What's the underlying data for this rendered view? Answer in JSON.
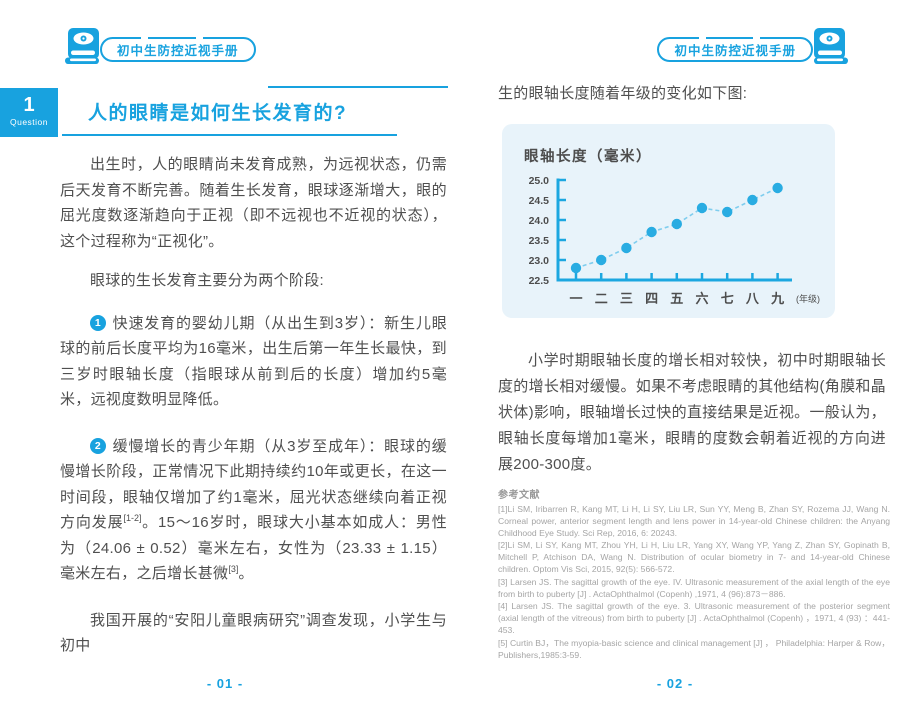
{
  "brand": {
    "primary_color": "#18a2df"
  },
  "left_page": {
    "header_title": "初中生防控近视手册",
    "question_number": "1",
    "question_label": "Question",
    "section_title": "人的眼睛是如何生长发育的?",
    "para_intro": "出生时，人的眼睛尚未发育成熟，为远视状态，仍需后天发育不断完善。随着生长发育，眼球逐渐增大，眼的屈光度数逐渐趋向于正视（即不远视也不近视的状态），这个过程称为“正视化”。",
    "para_stages_lead": "眼球的生长发育主要分为两个阶段:",
    "stages": [
      {
        "num": "1",
        "parts": [
          {
            "t": "快速发育的婴幼儿期（从出生到3岁）：新生儿眼球的前后长度平均为16毫米，出生后第一年生长最快，到三岁时眼轴长度（指眼球从前到后的长度）增加约5毫米，远视度数明显降低。",
            "sup": false
          }
        ]
      },
      {
        "num": "2",
        "parts": [
          {
            "t": "缓慢增长的青少年期（从3岁至成年）：眼球的缓慢增长阶段，正常情况下此期持续约10年或更长，在这一时间段，眼轴仅增加了约1毫米，屈光状态继续向着正视方向发展",
            "sup": false
          },
          {
            "t": "[1-2]",
            "sup": true
          },
          {
            "t": "。15～16岁时，眼球大小基本如成人：男性为（24.06 ± 0.52）毫米左右，女性为（23.33 ± 1.15）毫米左右，之后增长甚微",
            "sup": false
          },
          {
            "t": "[3]",
            "sup": true
          },
          {
            "t": "。",
            "sup": false
          }
        ]
      }
    ],
    "para_closing": "我国开展的“安阳儿童眼病研究”调查发现，小学生与初中",
    "page_number": "- 01 -"
  },
  "right_page": {
    "header_title": "初中生防控近视手册",
    "lead": "生的眼轴长度随着年级的变化如下图:",
    "paragraph": "小学时期眼轴长度的增长相对较快，初中时期眼轴长度的增长相对缓慢。如果不考虑眼睛的其他结构(角膜和晶状体)影响，眼轴增长过快的直接结果是近视。一般认为，眼轴长度每增加1毫米，眼睛的度数会朝着近视的方向进展200-300度。",
    "references_title": "参考文献",
    "references": [
      "[1]Li SM, Iribarren R, Kang MT, Li H, Li SY, Liu LR, Sun YY, Meng B, Zhan SY, Rozema JJ, Wang N. Corneal power, anterior segment length and lens power in 14-year-old Chinese children: the Anyang Childhood Eye Study. Sci Rep, 2016, 6: 20243.",
      "[2]Li SM, Li SY, Kang MT, Zhou YH, Li H, Liu LR, Yang XY, Wang YP, Yang Z, Zhan SY, Gopinath B, Mitchell P, Atchison DA, Wang N. Distribution of ocular biometry in 7- and 14-year-old Chinese children. Optom Vis Sci, 2015, 92(5): 566-572.",
      "[3] Larsen JS. The sagittal growth of the eye. IV. Ultrasonic measurement of the axial length of the eye from birth to puberty [J] . ActaOphthalmol (Copenh) ,1971, 4 (96):873－886.",
      "[4] Larsen JS. The sagittal growth of the eye. 3. Ultrasonic measurement of the posterior segment (axial length of the vitreous) from birth to puberty [J] . ActaOphthalmol (Copenh) ，1971, 4 (93) ：441-453.",
      "[5] Curtin BJ，The myopia-basic science and clinical management [J] ， Philadelphia: Harper & Row，Publishers,1985:3-59."
    ],
    "page_number": "- 02 -"
  },
  "chart_data": {
    "type": "line",
    "title": "眼轴长度（毫米）",
    "categories": [
      "一",
      "二",
      "三",
      "四",
      "五",
      "六",
      "七",
      "八",
      "九"
    ],
    "values": [
      22.8,
      23.0,
      23.3,
      23.7,
      23.9,
      24.3,
      24.2,
      24.5,
      24.8
    ],
    "xlabel": "(年级)",
    "ylabel": "眼轴长度（毫米）",
    "ylim": [
      22.5,
      25.0
    ],
    "yticks": [
      25.0,
      24.5,
      24.0,
      23.5,
      23.0,
      22.5
    ],
    "grid": false,
    "legend_position": "none",
    "line_style": "dashed",
    "marker": "circle",
    "colors": {
      "marker": "#29ace2",
      "line": "#7fcdee",
      "axis": "#1ca7e0",
      "tick_label": "#4d4d4d",
      "card_bg": "#e8f3fa"
    }
  }
}
